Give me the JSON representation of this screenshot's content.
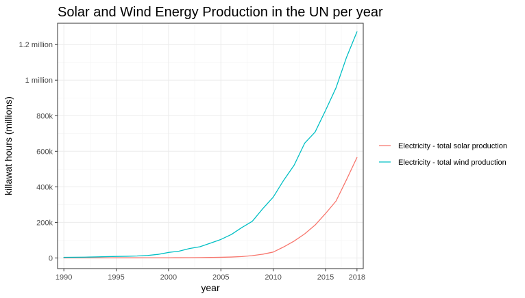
{
  "chart_data": {
    "type": "line",
    "title": "Solar and Wind Energy Production in the UN per year",
    "xlabel": "year",
    "ylabel": "killawat hours (millions)",
    "xlim": [
      1989.4,
      2018.6
    ],
    "ylim": [
      -60000,
      1320000
    ],
    "x_ticks": [
      {
        "value": 1990,
        "label": "1990"
      },
      {
        "value": 1995,
        "label": "1995"
      },
      {
        "value": 2000,
        "label": "2000"
      },
      {
        "value": 2005,
        "label": "2005"
      },
      {
        "value": 2010,
        "label": "2010"
      },
      {
        "value": 2015,
        "label": "2015"
      },
      {
        "value": 2018,
        "label": "2018"
      }
    ],
    "x_minor_ticks": [
      1992.5,
      1997.5,
      2002.5,
      2007.5,
      2012.5,
      2016.5
    ],
    "y_ticks": [
      {
        "value": 0,
        "label": "0"
      },
      {
        "value": 200000,
        "label": "200k"
      },
      {
        "value": 400000,
        "label": "400k"
      },
      {
        "value": 600000,
        "label": "600k"
      },
      {
        "value": 800000,
        "label": "800k"
      },
      {
        "value": 1000000,
        "label": "1 million"
      },
      {
        "value": 1200000,
        "label": "1.2 million"
      }
    ],
    "y_minor_ticks": [
      100000,
      300000,
      500000,
      700000,
      900000,
      1100000
    ],
    "grid": true,
    "legend_position": "right",
    "x": [
      1990,
      1991,
      1992,
      1993,
      1994,
      1995,
      1996,
      1997,
      1998,
      1999,
      2000,
      2001,
      2002,
      2003,
      2004,
      2005,
      2006,
      2007,
      2008,
      2009,
      2010,
      2011,
      2012,
      2013,
      2014,
      2015,
      2016,
      2017,
      2018
    ],
    "series": [
      {
        "name": "Electricity - total solar production",
        "color": "#F8766D",
        "values": [
          400,
          500,
          500,
          600,
          600,
          700,
          800,
          800,
          900,
          1000,
          1100,
          1300,
          1600,
          2000,
          2600,
          3600,
          5200,
          7700,
          13000,
          21000,
          33000,
          62000,
          95000,
          135000,
          185000,
          250000,
          320000,
          440000,
          565000
        ]
      },
      {
        "name": "Electricity - total wind production",
        "color": "#00BFC4",
        "values": [
          3500,
          3800,
          4500,
          5500,
          7000,
          8500,
          9500,
          11000,
          14000,
          20000,
          31000,
          38000,
          53000,
          63000,
          83000,
          104000,
          132000,
          171000,
          206000,
          277000,
          342000,
          437000,
          522000,
          645000,
          708000,
          830000,
          957000,
          1128000,
          1272000
        ]
      }
    ]
  }
}
